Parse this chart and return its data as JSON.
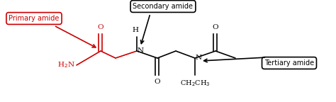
{
  "bg_color": "#ffffff",
  "fig_width": 4.74,
  "fig_height": 1.44,
  "dpi": 100,
  "primary_label": "Primary amide",
  "secondary_label": "Secondary amide",
  "tertiary_label": "Tertiary amide",
  "primary_label_color": "#cc0000",
  "secondary_label_color": "#000000",
  "tertiary_label_color": "#000000",
  "primary_box_edge": "#cc0000",
  "secondary_box_edge": "#000000",
  "tertiary_box_edge": "#000000",
  "molecule_color": "#000000",
  "red_color": "#cc0000",
  "bond_lw": 1.2,
  "font_size": 7.5,
  "label_font_size": 7.0
}
